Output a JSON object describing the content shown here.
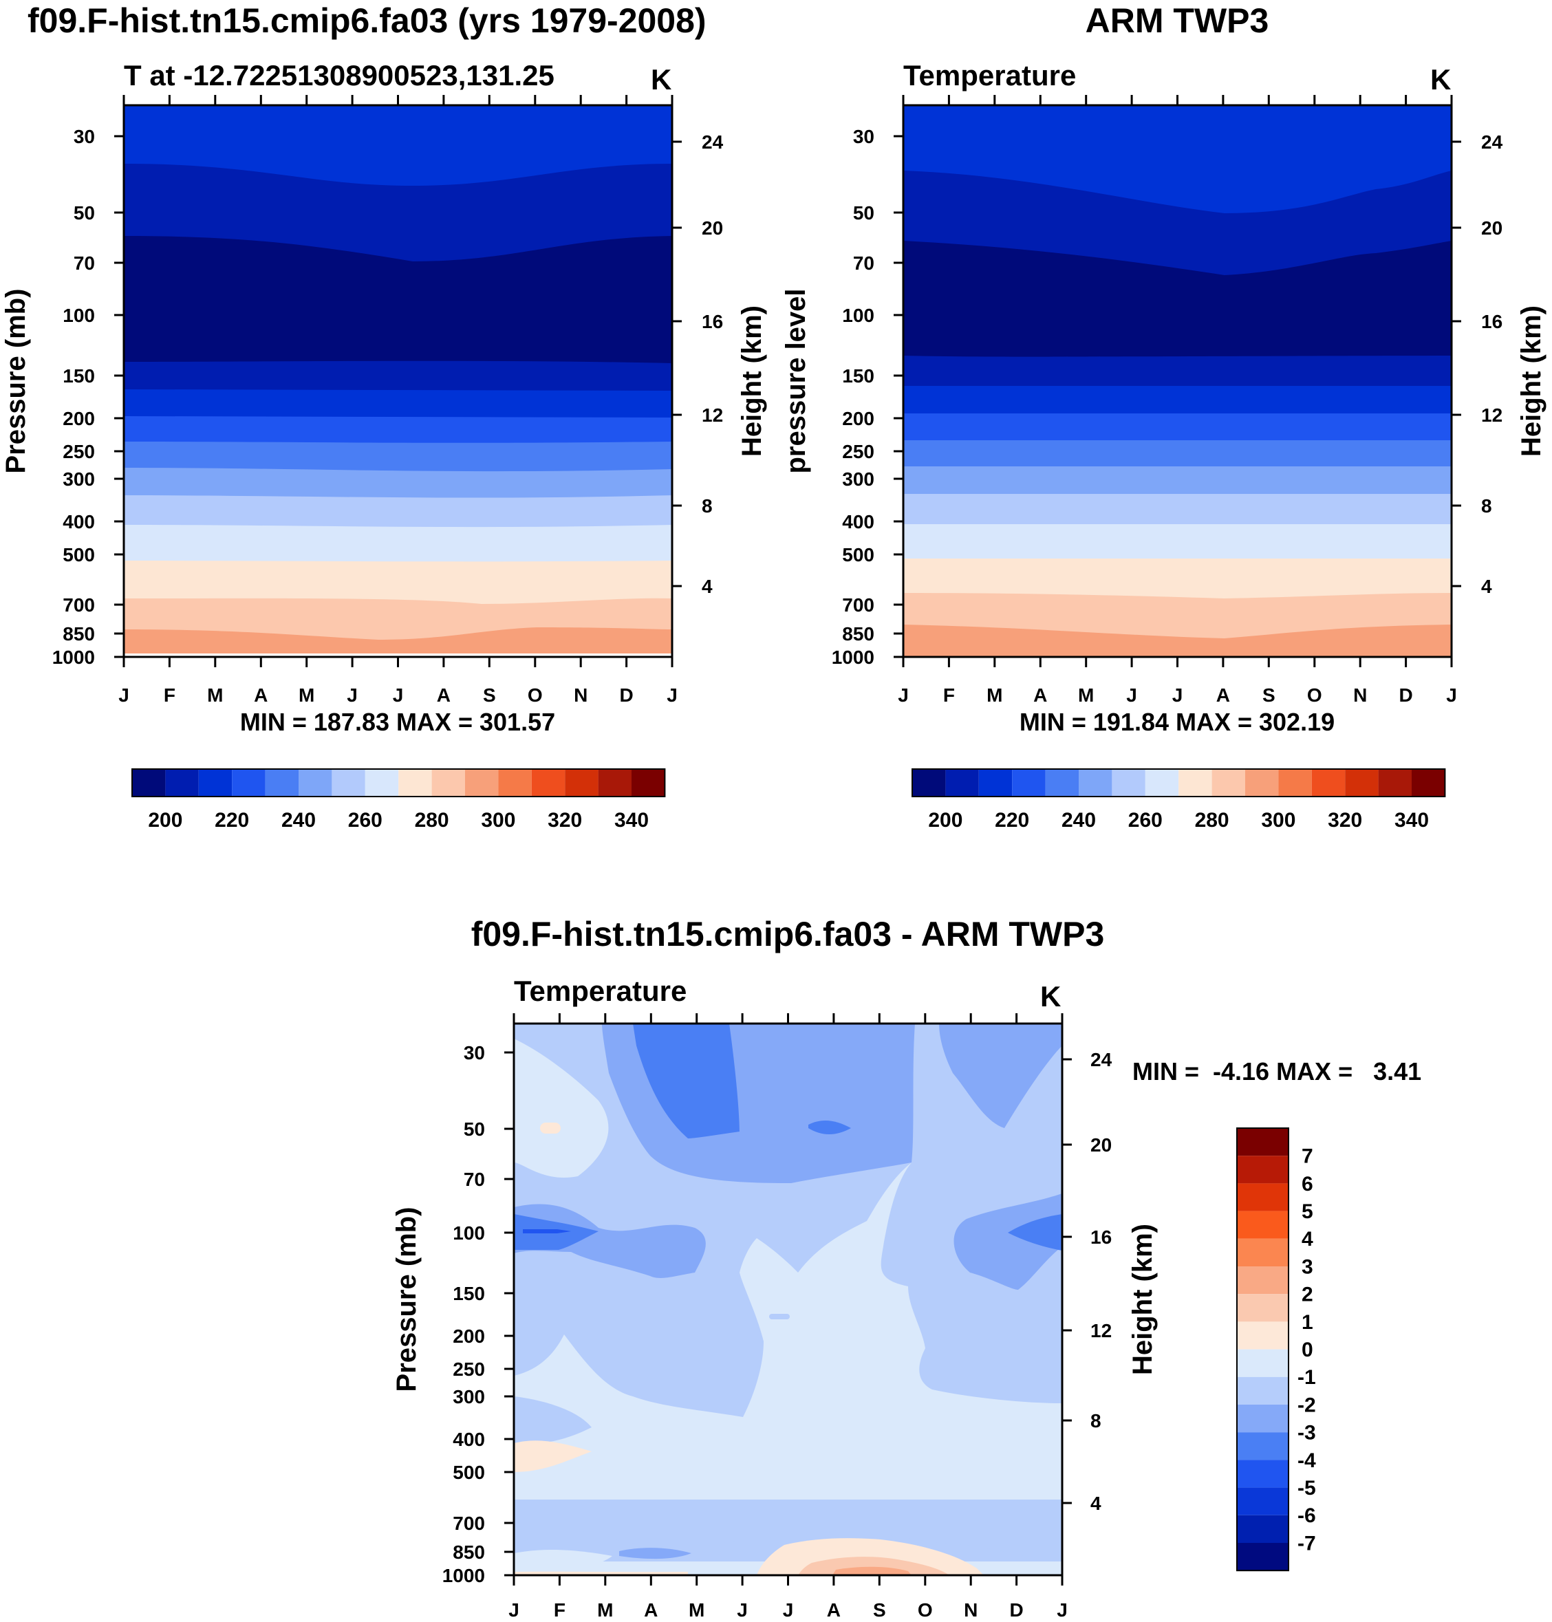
{
  "chart_data": [
    {
      "type": "heatmap",
      "panel": "model",
      "title": "f09.F-hist.tn15.cmip6.fa03 (yrs 1979-2008)",
      "subtitle": "T at -12.72251308900523,131.25",
      "units": "K",
      "ylabel": "Pressure (mb)",
      "y2label": "Height (km)",
      "x_ticks": [
        "J",
        "F",
        "M",
        "A",
        "M",
        "J",
        "J",
        "A",
        "S",
        "O",
        "N",
        "D",
        "J"
      ],
      "y_ticks": [
        "30",
        "50",
        "70",
        "100",
        "150",
        "200",
        "250",
        "300",
        "400",
        "500",
        "700",
        "850",
        "1000"
      ],
      "y2_ticks": [
        "24",
        "20",
        "16",
        "12",
        "8",
        "4"
      ],
      "stats": "MIN = 187.83 MAX = 301.57",
      "colorbar_labels": [
        "200",
        "220",
        "240",
        "260",
        "280",
        "300",
        "320",
        "340"
      ],
      "min": 187.83,
      "max": 301.57
    },
    {
      "type": "heatmap",
      "panel": "observation",
      "title": "ARM TWP3",
      "subtitle": "Temperature",
      "units": "K",
      "ylabel": "pressure level",
      "y2label": "Height (km)",
      "x_ticks": [
        "J",
        "F",
        "M",
        "A",
        "M",
        "J",
        "J",
        "A",
        "S",
        "O",
        "N",
        "D",
        "J"
      ],
      "y_ticks": [
        "30",
        "50",
        "70",
        "100",
        "150",
        "200",
        "250",
        "300",
        "400",
        "500",
        "700",
        "850",
        "1000"
      ],
      "y2_ticks": [
        "24",
        "20",
        "16",
        "12",
        "8",
        "4"
      ],
      "stats": "MIN = 191.84 MAX = 302.19",
      "colorbar_labels": [
        "200",
        "220",
        "240",
        "260",
        "280",
        "300",
        "320",
        "340"
      ],
      "min": 191.84,
      "max": 302.19
    },
    {
      "type": "heatmap",
      "panel": "difference",
      "title": "f09.F-hist.tn15.cmip6.fa03 - ARM TWP3",
      "subtitle": "Temperature",
      "units": "K",
      "ylabel": "Pressure (mb)",
      "y2label": "Height (km)",
      "x_ticks": [
        "J",
        "F",
        "M",
        "A",
        "M",
        "J",
        "J",
        "A",
        "S",
        "O",
        "N",
        "D",
        "J"
      ],
      "y_ticks": [
        "30",
        "50",
        "70",
        "100",
        "150",
        "200",
        "250",
        "300",
        "400",
        "500",
        "700",
        "850",
        "1000"
      ],
      "y2_ticks": [
        "24",
        "20",
        "16",
        "12",
        "8",
        "4"
      ],
      "stats": "MIN =  -4.16 MAX =   3.41",
      "colorbar_labels": [
        "7",
        "6",
        "5",
        "4",
        "3",
        "2",
        "1",
        "0",
        "-1",
        "-2",
        "-3",
        "-4",
        "-5",
        "-6",
        "-7"
      ],
      "min": -4.16,
      "max": 3.41
    }
  ],
  "palettes": {
    "temperature": [
      "#000a7a",
      "#001db0",
      "#0033d6",
      "#1f55f0",
      "#4a7ef4",
      "#7ea6f8",
      "#b2cafc",
      "#d8e7fc",
      "#fde6d3",
      "#fcc8ad",
      "#f7a07a",
      "#f57a48",
      "#ef4e1e",
      "#d33008",
      "#a81808",
      "#7a0000"
    ],
    "difference": [
      "#7a0000",
      "#b71a06",
      "#e03508",
      "#fa5a1c",
      "#fb8650",
      "#f9a985",
      "#fac9b0",
      "#fde8d8",
      "#dae9fb",
      "#b5cdfb",
      "#85a9f8",
      "#4a7ff4",
      "#2055f0",
      "#0a38d8",
      "#0020b0",
      "#000a80"
    ]
  }
}
